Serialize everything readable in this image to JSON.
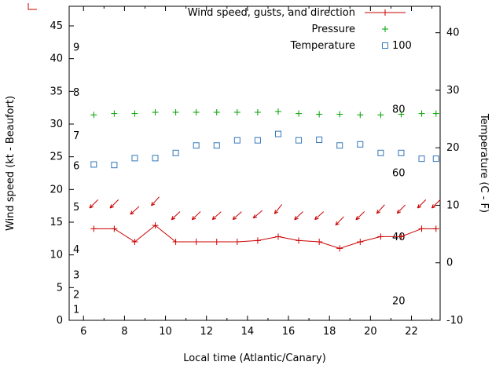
{
  "chart_data": {
    "type": "line",
    "title": "",
    "xlabel": "Local time (Atlantic/Canary)",
    "ylabel_left": "Wind speed (kt - Beaufort)",
    "ylabel_right": "Temperature (C - F)",
    "x_range_hours": [
      5.3,
      23.4
    ],
    "x_major_ticks": [
      6,
      8,
      10,
      12,
      14,
      16,
      18,
      20,
      22
    ],
    "x_minor_ticks": [
      7,
      9,
      11,
      13,
      15,
      17,
      19,
      21,
      23
    ],
    "y_left_range_kt": [
      0,
      48
    ],
    "y_left_ticks_kt": [
      0,
      5,
      10,
      15,
      20,
      25,
      30,
      35,
      40,
      45
    ],
    "beaufort_labels": [
      {
        "label": "1",
        "kt": 1.6
      },
      {
        "label": "2",
        "kt": 3.9
      },
      {
        "label": "3",
        "kt": 6.9
      },
      {
        "label": "4",
        "kt": 10.8
      },
      {
        "label": "5",
        "kt": 17.3
      },
      {
        "label": "6",
        "kt": 23.6
      },
      {
        "label": "7",
        "kt": 28.2
      },
      {
        "label": "8",
        "kt": 34.8
      },
      {
        "label": "9",
        "kt": 41.7
      }
    ],
    "y_right_range_c": [
      -10,
      44.6
    ],
    "y_right_ticks_c": [
      -10,
      0,
      10,
      20,
      30,
      40
    ],
    "fahrenheit_labels": [
      {
        "label": "20",
        "c": -6.67
      },
      {
        "label": "40",
        "c": 4.44
      },
      {
        "label": "60",
        "c": 15.56
      },
      {
        "label": "80",
        "c": 26.67
      },
      {
        "label": "100",
        "c": 37.78
      }
    ],
    "legend": [
      {
        "label": "Wind speed, gusts, and direction",
        "series": "wind",
        "marker": "line-plus"
      },
      {
        "label": "Pressure",
        "series": "pressure",
        "marker": "plus"
      },
      {
        "label": "Temperature",
        "series": "temperature",
        "marker": "open-square"
      }
    ],
    "colors": {
      "wind": "#cc0000",
      "pressure": "#00a000",
      "temperature": "#3377bb",
      "axis": "#000000"
    },
    "x_hours": [
      6.5,
      7.5,
      8.5,
      9.5,
      10.5,
      11.5,
      12.5,
      13.5,
      14.5,
      15.5,
      16.5,
      17.5,
      18.5,
      19.5,
      20.5,
      21.5,
      22.5,
      23.2
    ],
    "series": [
      {
        "name": "wind_speed_kt",
        "values": [
          14,
          14,
          12,
          14.5,
          12,
          12,
          12,
          12,
          12.2,
          12.8,
          12.2,
          12,
          11,
          12,
          12.8,
          12.8,
          14,
          14
        ]
      },
      {
        "name": "wind_gust_kt",
        "values": [
          17.8,
          17.8,
          16.8,
          18.2,
          16.0,
          16.0,
          16.0,
          16.0,
          16.2,
          17.0,
          16.0,
          16.0,
          15.2,
          16.0,
          17.0,
          17.0,
          17.8,
          17.8
        ]
      },
      {
        "name": "wind_dir_toward_deg",
        "values": [
          225,
          225,
          228,
          222,
          226,
          226,
          228,
          228,
          230,
          218,
          226,
          228,
          224,
          226,
          222,
          224,
          225,
          225
        ]
      },
      {
        "name": "pressure_plotted_left_axis_units",
        "values": [
          31.4,
          31.6,
          31.6,
          31.8,
          31.8,
          31.8,
          31.8,
          31.8,
          31.8,
          31.9,
          31.6,
          31.5,
          31.5,
          31.4,
          31.4,
          31.5,
          31.6,
          31.6
        ]
      },
      {
        "name": "temperature_c",
        "values": [
          17.1,
          17.0,
          18.2,
          18.2,
          19.1,
          20.4,
          20.4,
          21.3,
          21.3,
          22.4,
          21.3,
          21.4,
          20.4,
          20.6,
          19.1,
          19.1,
          18.1,
          18.1
        ]
      }
    ]
  },
  "decor": {
    "stray_mark_color": "#cc0000"
  }
}
